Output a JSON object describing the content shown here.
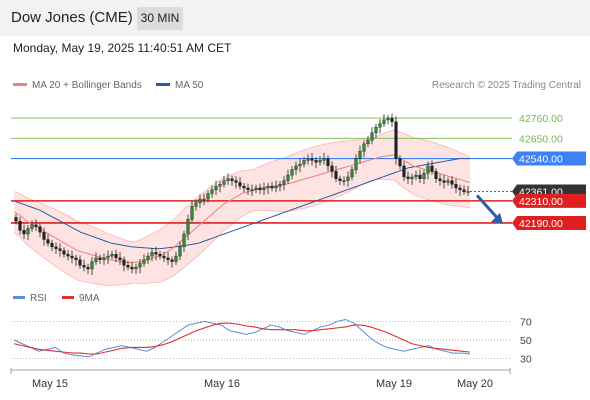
{
  "header": {
    "title": "Dow Jones (CME)",
    "timeframe": "30 MIN",
    "datetime": "Monday, May 19, 2025 11:40:51 AM CET"
  },
  "legend": {
    "items": [
      {
        "label": "MA 20 + Bollinger Bands",
        "color": "#f08080"
      },
      {
        "label": "MA 50",
        "color": "#2e5c9e"
      }
    ],
    "copyright": "Research © 2025 Trading Central"
  },
  "rsi_legend": {
    "items": [
      {
        "label": "RSI",
        "color": "#5b8dd9"
      },
      {
        "label": "9MA",
        "color": "#e03030"
      }
    ]
  },
  "colors": {
    "resistance": "#7ab648",
    "pivot": "#3b82f6",
    "support": "#e02020",
    "current": "#333333",
    "band_fill": "#fde3e1",
    "arrow": "#2b5fa8"
  },
  "chart_data": [
    {
      "type": "candlestick",
      "title": "Dow Jones (CME)",
      "timeframe": "30 MIN",
      "x_ticks": [
        "May 15",
        "May 16",
        "May 19",
        "May 20"
      ],
      "ylim": [
        41880,
        42880
      ],
      "levels": [
        {
          "label": "42760.00",
          "value": 42760,
          "kind": "resistance"
        },
        {
          "label": "42650.00",
          "value": 42650,
          "kind": "resistance"
        },
        {
          "label": "42540.00",
          "value": 42540,
          "kind": "pivot"
        },
        {
          "label": "42361.00",
          "value": 42361,
          "kind": "current"
        },
        {
          "label": "42310.00",
          "value": 42310,
          "kind": "support"
        },
        {
          "label": "42190.00",
          "value": 42190,
          "kind": "support"
        }
      ],
      "close_series": [
        42200,
        42150,
        42130,
        42160,
        42180,
        42170,
        42140,
        42100,
        42080,
        42060,
        42050,
        42040,
        42020,
        42010,
        42000,
        41990,
        41960,
        41950,
        41940,
        41980,
        42000,
        41990,
        42000,
        42010,
        42020,
        42000,
        41990,
        41960,
        41950,
        41940,
        41950,
        41970,
        41990,
        42010,
        42030,
        42020,
        42010,
        42000,
        41990,
        41980,
        42010,
        42060,
        42130,
        42210,
        42280,
        42300,
        42320,
        42320,
        42350,
        42370,
        42390,
        42400,
        42420,
        42430,
        42420,
        42410,
        42390,
        42380,
        42370,
        42370,
        42380,
        42370,
        42380,
        42390,
        42380,
        42390,
        42400,
        42420,
        42450,
        42480,
        42500,
        42510,
        42530,
        42540,
        42530,
        42520,
        42530,
        42540,
        42500,
        42470,
        42430,
        42420,
        42420,
        42440,
        42480,
        42540,
        42580,
        42620,
        42640,
        42680,
        42710,
        42730,
        42750,
        42760,
        42740,
        42540,
        42500,
        42440,
        42430,
        42440,
        42450,
        42430,
        42460,
        42500,
        42470,
        42430,
        42420,
        42410,
        42420,
        42400,
        42380,
        42370,
        42360,
        42361
      ],
      "ma50": [
        42310,
        42300,
        42290,
        42280,
        42270,
        42260,
        42245,
        42230,
        42215,
        42200,
        42185,
        42170,
        42155,
        42140,
        42130,
        42120,
        42110,
        42100,
        42090,
        42080,
        42075,
        42070,
        42065,
        42060,
        42058,
        42056,
        42054,
        42052,
        42050,
        42052,
        42055,
        42058,
        42062,
        42066,
        42070,
        42075,
        42080,
        42090,
        42100,
        42110,
        42120,
        42130,
        42140,
        42150,
        42160,
        42170,
        42180,
        42190,
        42200,
        42210,
        42220,
        42230,
        42240,
        42250,
        42260,
        42270,
        42280,
        42290,
        42300,
        42310,
        42320,
        42330,
        42340,
        42350,
        42360,
        42370,
        42380,
        42390,
        42400,
        42410,
        42420,
        42430,
        42440,
        42450,
        42460,
        42470,
        42480,
        42490,
        42495,
        42500,
        42505,
        42510,
        42515,
        42520,
        42525,
        42530,
        42535,
        42540,
        42540,
        42540
      ],
      "ma20": [
        42250,
        42230,
        42200,
        42180,
        42160,
        42140,
        42120,
        42100,
        42080,
        42060,
        42040,
        42030,
        42020,
        42010,
        42000,
        41990,
        41985,
        41980,
        41975,
        41975,
        41980,
        41990,
        42000,
        42010,
        42030,
        42050,
        42080,
        42110,
        42140,
        42170,
        42200,
        42230,
        42260,
        42290,
        42310,
        42330,
        42350,
        42360,
        42370,
        42380,
        42385,
        42390,
        42395,
        42400,
        42410,
        42420,
        42430,
        42440,
        42450,
        42460,
        42470,
        42480,
        42490,
        42500,
        42510,
        42520,
        42530,
        42540,
        42550,
        42555,
        42560,
        42540,
        42520,
        42500,
        42490,
        42480,
        42470,
        42460,
        42450,
        42440,
        42430,
        42420,
        42410
      ]
    },
    {
      "type": "line",
      "title": "RSI",
      "series": [
        {
          "name": "RSI",
          "values": [
            50,
            46,
            42,
            38,
            40,
            42,
            36,
            34,
            33,
            32,
            36,
            40,
            42,
            44,
            42,
            40,
            38,
            42,
            48,
            54,
            60,
            66,
            68,
            70,
            68,
            66,
            60,
            58,
            56,
            58,
            62,
            66,
            64,
            60,
            58,
            56,
            60,
            64,
            66,
            70,
            72,
            68,
            60,
            52,
            46,
            42,
            40,
            38,
            40,
            42,
            44,
            40,
            38,
            36,
            36,
            35
          ]
        },
        {
          "name": "9MA",
          "values": [
            46,
            44,
            42,
            40,
            39,
            38,
            37,
            36,
            36,
            35,
            35,
            37,
            39,
            41,
            42,
            42,
            42,
            43,
            45,
            48,
            52,
            56,
            60,
            63,
            66,
            68,
            68,
            67,
            65,
            64,
            62,
            61,
            61,
            61,
            61,
            60,
            60,
            61,
            62,
            63,
            64,
            66,
            66,
            64,
            61,
            58,
            54,
            50,
            46,
            44,
            42,
            41,
            40,
            39,
            38,
            37
          ]
        }
      ],
      "ylim": [
        20,
        80
      ],
      "y_ticks": [
        "70",
        "50",
        "30"
      ],
      "x_ticks": [
        "May 15",
        "May 16",
        "May 19",
        "May 20"
      ]
    }
  ]
}
